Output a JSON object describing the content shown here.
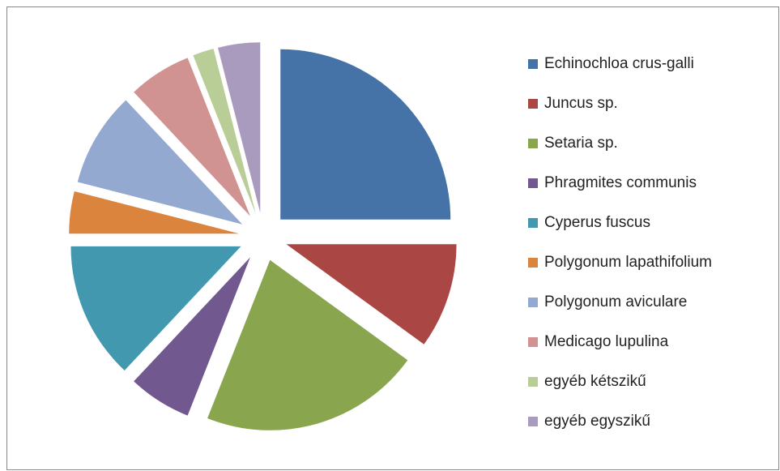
{
  "chart_data": {
    "type": "pie",
    "categories": [
      "Echinochloa crus-galli",
      "Juncus sp.",
      "Setaria sp.",
      "Phragmites communis",
      "Cyperus fuscus",
      "Polygonum lapathifolium",
      "Polygonum aviculare",
      "Medicago lupulina",
      "egyéb kétszikű",
      "egyéb egyszikű"
    ],
    "values": [
      25,
      10,
      21,
      6,
      13,
      4,
      9,
      6,
      2,
      4
    ],
    "colors": [
      "#4572a7",
      "#aa4643",
      "#89a54e",
      "#71588f",
      "#4198af",
      "#db843d",
      "#93a9cf",
      "#d19392",
      "#b9cd96",
      "#a99bbd"
    ],
    "exploded": true,
    "legend": "right"
  }
}
